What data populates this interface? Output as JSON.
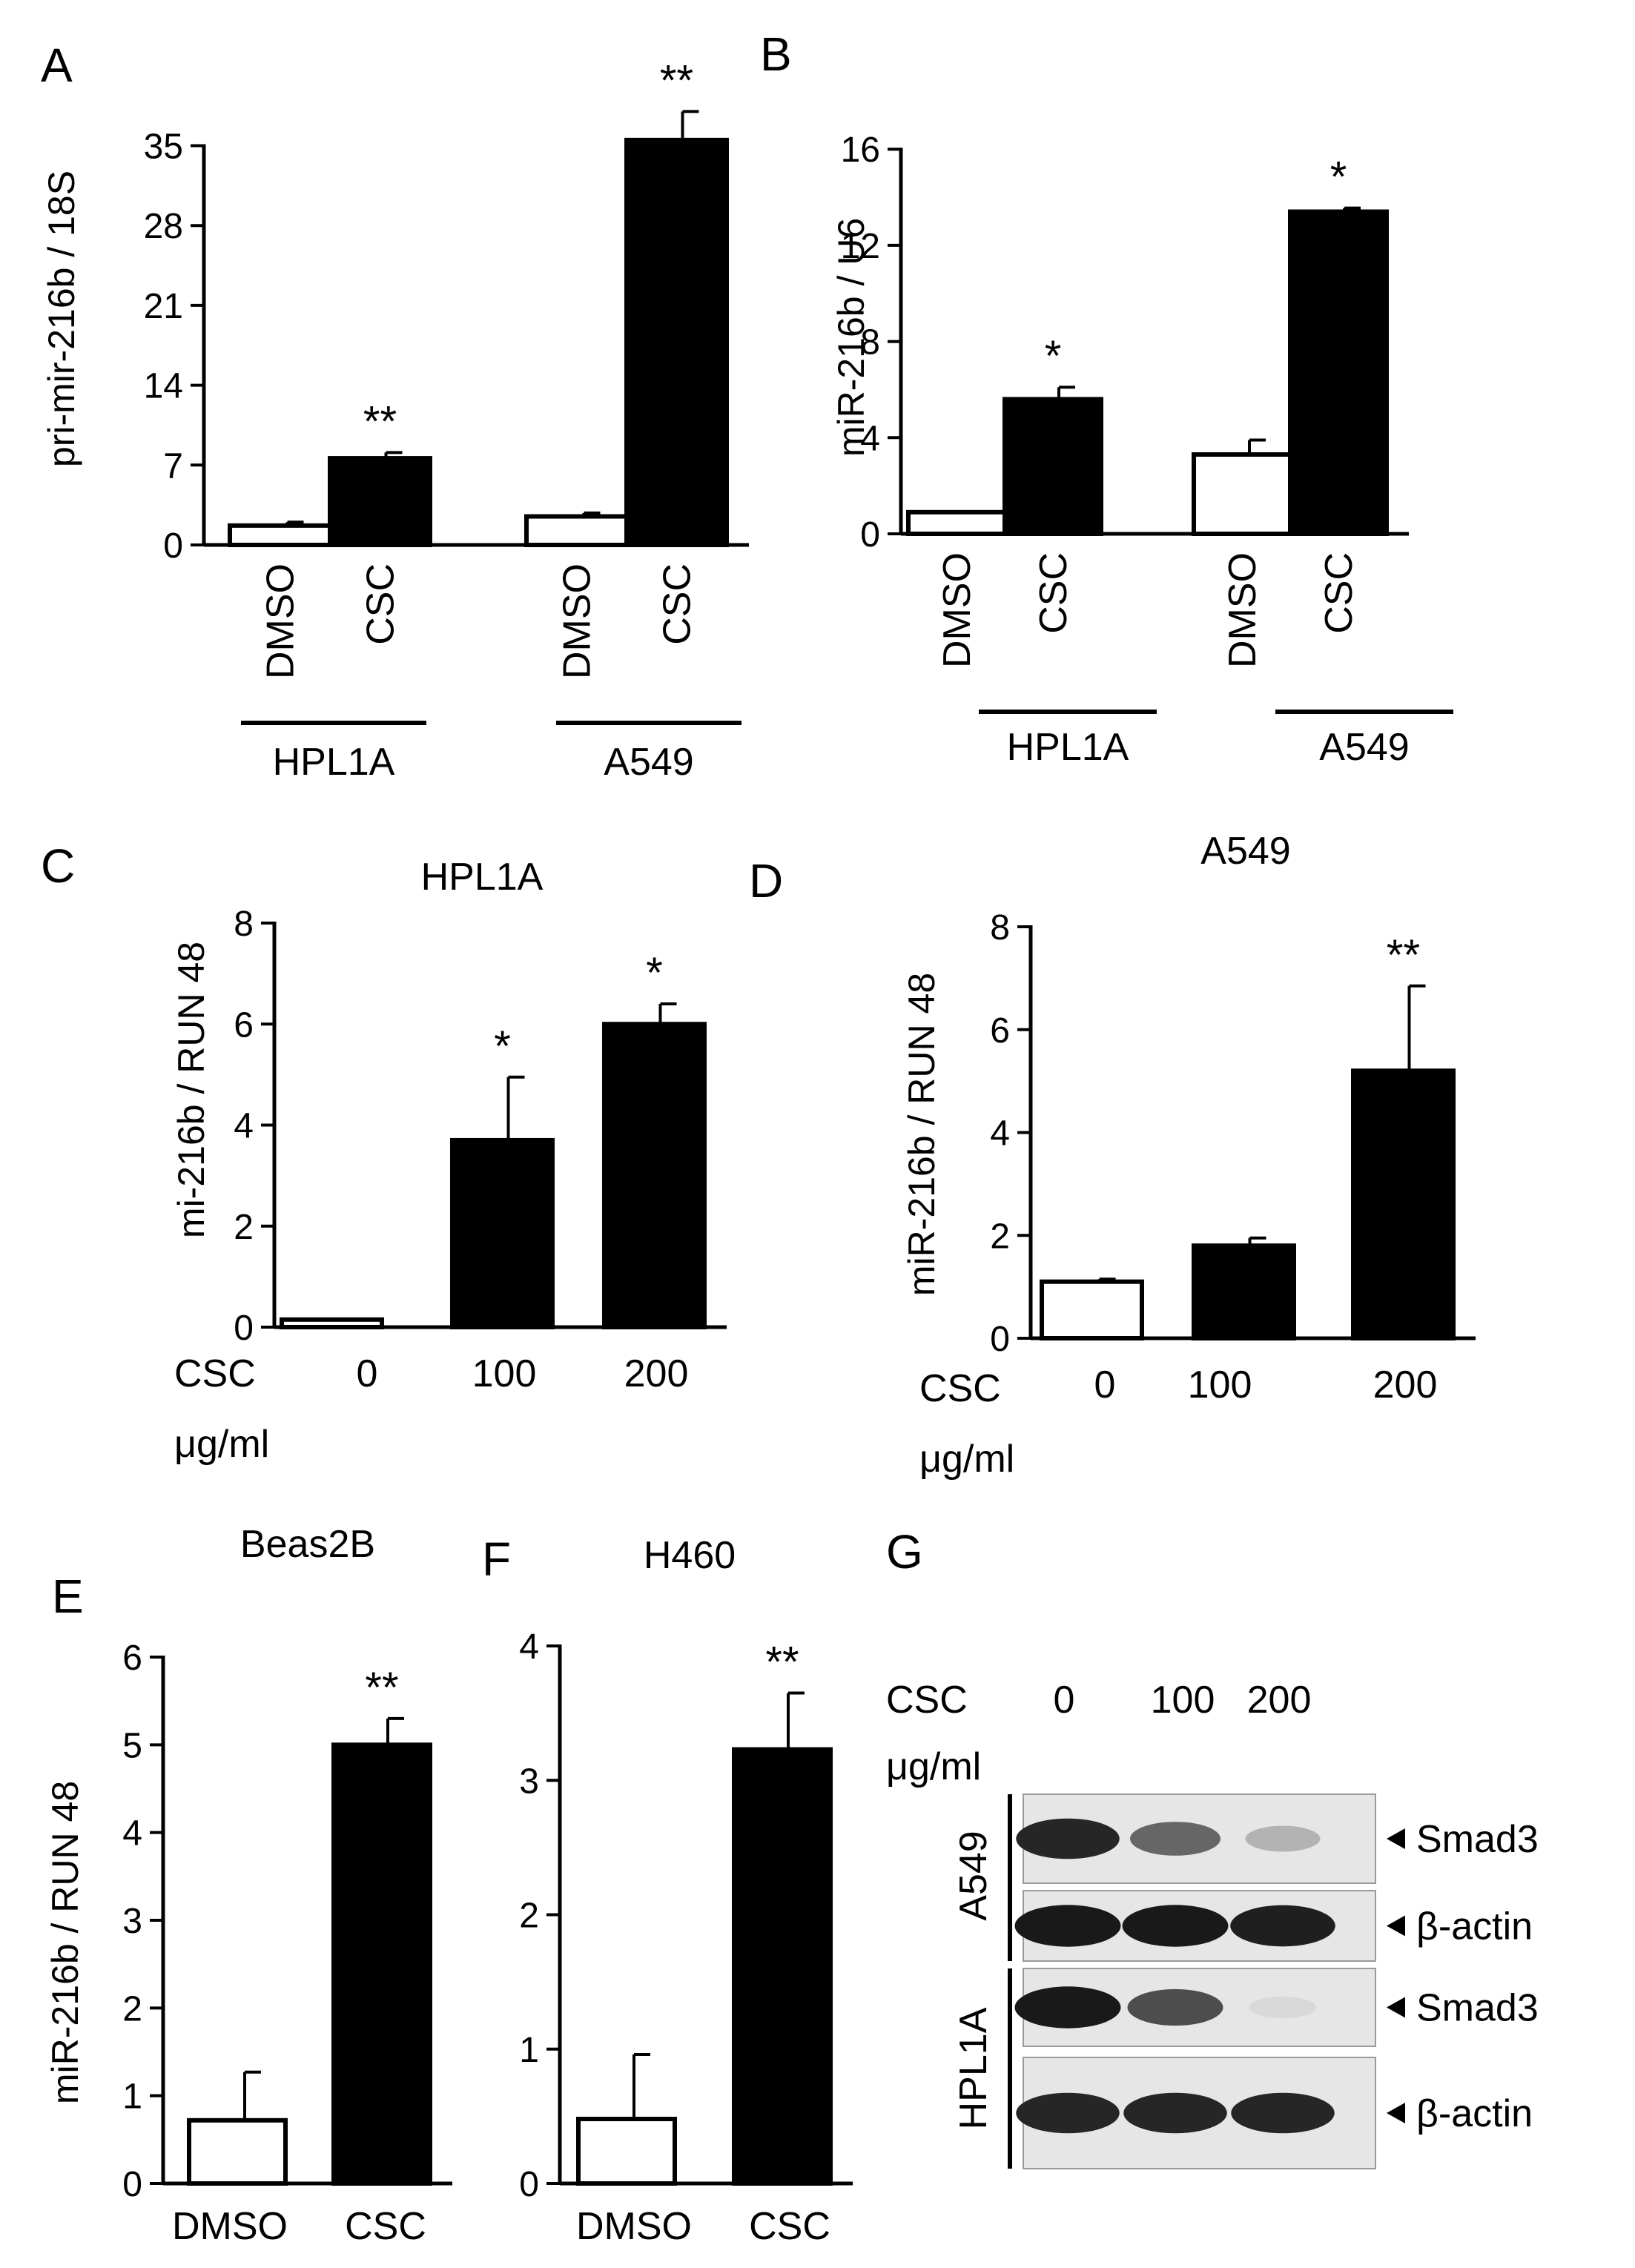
{
  "chart_data": [
    {
      "panel": "A",
      "type": "bar",
      "ylabel": "pri-mir-216b / 18S",
      "yticks": [
        0,
        7,
        14,
        21,
        28,
        35
      ],
      "ylim": [
        0,
        39
      ],
      "categories": [
        "DMSO",
        "CSC",
        "DMSO",
        "CSC"
      ],
      "groups": [
        "HPL1A",
        "A549"
      ],
      "values": [
        1.7,
        7.6,
        2.5,
        35.5
      ],
      "errors": [
        0.3,
        0.5,
        0.3,
        2.5
      ],
      "fills": [
        "white",
        "black",
        "white",
        "black"
      ],
      "significance": [
        "",
        "**",
        "",
        "**"
      ]
    },
    {
      "panel": "B",
      "type": "bar",
      "ylabel": "miR-216b / U6",
      "yticks": [
        0,
        4,
        8,
        12,
        16
      ],
      "ylim": [
        0,
        16.5
      ],
      "categories": [
        "DMSO",
        "CSC",
        "DMSO",
        "CSC"
      ],
      "groups": [
        "HPL1A",
        "A549"
      ],
      "values": [
        0.9,
        5.6,
        3.3,
        13.4
      ],
      "errors": [
        0.0,
        0.5,
        0.6,
        0.15
      ],
      "fills": [
        "white",
        "black",
        "white",
        "black"
      ],
      "significance": [
        "",
        "*",
        "",
        "*"
      ]
    },
    {
      "panel": "C",
      "type": "bar",
      "title": "HPL1A",
      "ylabel": "mi-216b / RUN 48",
      "yticks": [
        0,
        2,
        4,
        6,
        8
      ],
      "ylim": [
        0,
        8
      ],
      "xlabel": "CSC\nμg/ml",
      "categories": [
        "0",
        "100",
        "200"
      ],
      "values": [
        0.15,
        3.7,
        6.0
      ],
      "errors": [
        0.0,
        1.25,
        0.4
      ],
      "fills": [
        "white",
        "black",
        "black"
      ],
      "significance": [
        "",
        "*",
        "*"
      ]
    },
    {
      "panel": "D",
      "type": "bar",
      "title": "A549",
      "ylabel": "miR-216b / RUN 48",
      "yticks": [
        0,
        2,
        4,
        6,
        8
      ],
      "ylim": [
        0,
        8
      ],
      "xlabel": "CSC\nμg/ml",
      "categories": [
        "0",
        "100",
        "200"
      ],
      "values": [
        1.1,
        1.8,
        5.2
      ],
      "errors": [
        0.05,
        0.15,
        1.65
      ],
      "fills": [
        "white",
        "black",
        "black"
      ],
      "significance": [
        "",
        "",
        "**"
      ]
    },
    {
      "panel": "E",
      "type": "bar",
      "title": "Beas2B",
      "ylabel": "miR-216b / RUN 48",
      "yticks": [
        0,
        1,
        2,
        3,
        4,
        5,
        6
      ],
      "ylim": [
        0,
        6
      ],
      "categories": [
        "DMSO",
        "CSC"
      ],
      "values": [
        0.72,
        5.0
      ],
      "errors": [
        0.55,
        0.3
      ],
      "fills": [
        "white",
        "black"
      ],
      "significance": [
        "",
        "**"
      ]
    },
    {
      "panel": "F",
      "type": "bar",
      "title": "H460",
      "ylabel": "",
      "yticks": [
        0,
        1,
        2,
        3,
        4
      ],
      "ylim": [
        0,
        4
      ],
      "categories": [
        "DMSO",
        "CSC"
      ],
      "values": [
        0.48,
        3.23
      ],
      "errors": [
        0.48,
        0.42
      ],
      "fills": [
        "white",
        "black"
      ],
      "significance": [
        "",
        "**"
      ]
    }
  ],
  "blot": {
    "panel": "G",
    "csc_label": "CSC",
    "unit_label": "μg/ml",
    "lanes": [
      "0",
      "100",
      "200"
    ],
    "rows": [
      {
        "cell_line": "A549",
        "protein": "Smad3",
        "intensity": [
          0.85,
          0.6,
          0.3
        ]
      },
      {
        "cell_line": "A549",
        "protein": "β-actin",
        "intensity": [
          0.9,
          0.9,
          0.88
        ]
      },
      {
        "cell_line": "HPL1A",
        "protein": "Smad3",
        "intensity": [
          0.9,
          0.7,
          0.15
        ]
      },
      {
        "cell_line": "HPL1A",
        "protein": "β-actin",
        "intensity": [
          0.85,
          0.85,
          0.85
        ]
      }
    ],
    "cell_lines": [
      "A549",
      "HPL1A"
    ]
  }
}
